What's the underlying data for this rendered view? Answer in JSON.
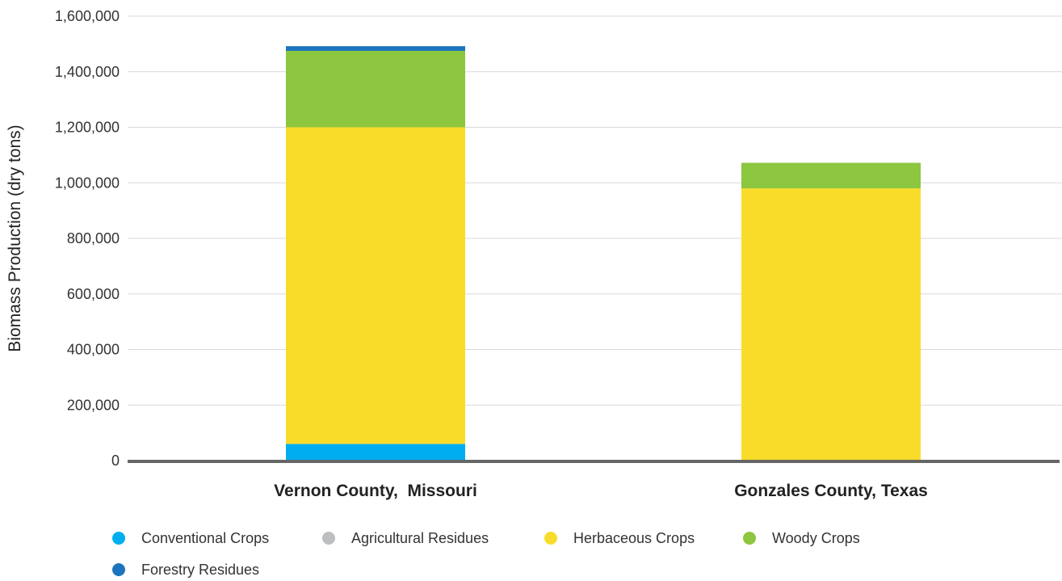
{
  "chart_data": {
    "type": "bar",
    "stacked": true,
    "ylabel": "Biomass Production (dry tons)",
    "xlabel": "",
    "ylim": [
      0,
      1600000
    ],
    "yticks": [
      0,
      200000,
      400000,
      600000,
      800000,
      1000000,
      1200000,
      1400000,
      1600000
    ],
    "ytick_labels": [
      "0",
      "200,000",
      "400,000",
      "600,000",
      "800,000",
      "1,000,000",
      "1,200,000",
      "1,400,000",
      "1,600,000"
    ],
    "grid": true,
    "legend_position": "bottom",
    "categories": [
      "Vernon County,  Missouri",
      "Gonzales County, Texas"
    ],
    "series": [
      {
        "name": "Conventional Crops",
        "color": "#00aeef",
        "values": [
          60000,
          0
        ]
      },
      {
        "name": "Agricultural Residues",
        "color": "#bcbec0",
        "values": [
          0,
          0
        ]
      },
      {
        "name": "Herbaceous Crops",
        "color": "#f9dc2a",
        "values": [
          1140000,
          980000
        ]
      },
      {
        "name": "Woody Crops",
        "color": "#8dc63f",
        "values": [
          275000,
          92000
        ]
      },
      {
        "name": "Forestry Residues",
        "color": "#1c75bc",
        "values": [
          17000,
          0
        ]
      }
    ]
  }
}
